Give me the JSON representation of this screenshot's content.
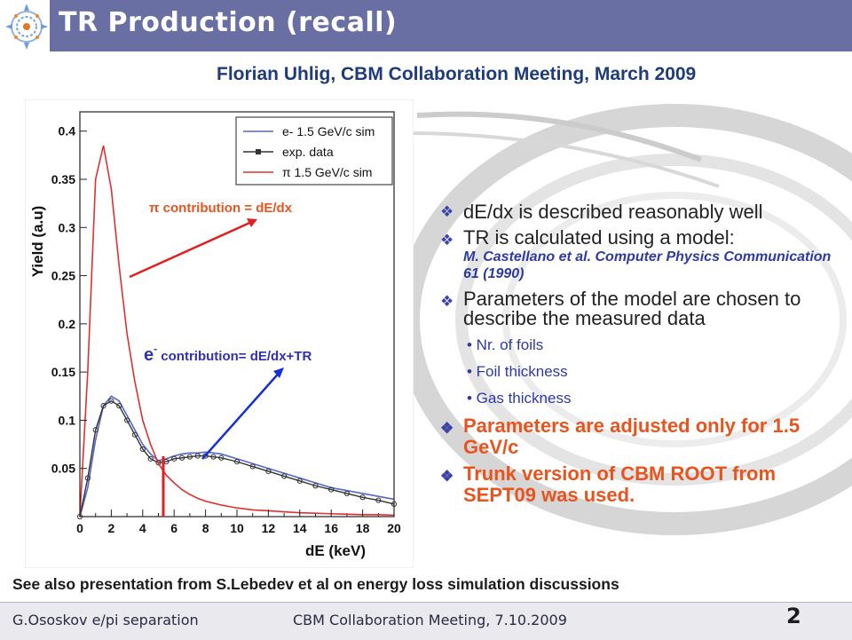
{
  "slide": {
    "title": "TR Production (recall)",
    "subtitle": "Florian Uhlig, CBM Collaboration Meeting, March 2009",
    "see_also": "See also presentation from S.Lebedev et al on energy loss simulation discussions"
  },
  "bullets": {
    "item1": "dE/dx is described reasonably well",
    "item2": "TR is calculated using a model:",
    "item2_ref": "M. Castellano et al. Computer Physics Communication 61 (1990)",
    "item3": " Parameters of the model are chosen to describe the measured data",
    "sub1": "• Nr. of foils",
    "sub2": "• Foil thickness",
    "sub3": "• Gas thickness",
    "item4": " Parameters are adjusted only for 1.5 GeV/c",
    "item5": "Trunk version of CBM ROOT from SEPT09 was used."
  },
  "annotations": {
    "pi": "π contribution = dE/dx",
    "e_sym": "e",
    "e_sup": "-",
    "e_rest": " contribution= dE/dx+TR"
  },
  "footer": {
    "author": "G.Ososkov    e/pi separation",
    "meeting": "CBM Collaboration Meeting, 7.10.2009",
    "page": "2"
  },
  "colors": {
    "title_bar": "#6a6fa3",
    "pi_annotation": "#e8541e",
    "e_annotation": "#3030b0",
    "highlight_bullet": "#e8541e",
    "electron_sim": "#5566cc",
    "pion_sim": "#e03030",
    "exp_data": "#333333"
  },
  "chart_data": {
    "type": "line",
    "xlabel": "dE (keV)",
    "ylabel": "Yield (a.u)",
    "xlim": [
      0,
      20
    ],
    "ylim": [
      0,
      0.42
    ],
    "x_ticks": [
      0,
      2,
      4,
      6,
      8,
      10,
      12,
      14,
      16,
      18,
      20
    ],
    "y_ticks": [
      0.05,
      0.1,
      0.15,
      0.2,
      0.25,
      0.3,
      0.35,
      0.4
    ],
    "legend_position": "top-right",
    "series": [
      {
        "name": "e- 1.5 GeV/c sim",
        "color": "#5566cc",
        "x": [
          0,
          0.5,
          1,
          1.5,
          2,
          2.5,
          3,
          3.5,
          4,
          4.5,
          5,
          5.5,
          6,
          6.5,
          7,
          7.5,
          8,
          8.5,
          9,
          10,
          11,
          12,
          13,
          14,
          15,
          16,
          17,
          18,
          19,
          20
        ],
        "y": [
          0,
          0.03,
          0.08,
          0.115,
          0.125,
          0.12,
          0.105,
          0.09,
          0.075,
          0.065,
          0.058,
          0.06,
          0.063,
          0.065,
          0.066,
          0.066,
          0.067,
          0.066,
          0.065,
          0.06,
          0.055,
          0.05,
          0.045,
          0.04,
          0.035,
          0.03,
          0.027,
          0.024,
          0.021,
          0.018
        ]
      },
      {
        "name": "exp. data",
        "color": "#333333",
        "x": [
          0,
          0.5,
          1,
          1.5,
          2,
          2.5,
          3,
          3.5,
          4,
          4.5,
          5,
          5.5,
          6,
          6.5,
          7,
          7.5,
          8,
          8.5,
          9,
          10,
          11,
          12,
          13,
          14,
          15,
          16,
          17,
          18,
          19,
          20
        ],
        "y": [
          0,
          0.04,
          0.09,
          0.115,
          0.12,
          0.115,
          0.1,
          0.085,
          0.07,
          0.06,
          0.056,
          0.057,
          0.06,
          0.061,
          0.062,
          0.063,
          0.063,
          0.062,
          0.061,
          0.057,
          0.052,
          0.047,
          0.042,
          0.037,
          0.032,
          0.028,
          0.024,
          0.02,
          0.017,
          0.013
        ]
      },
      {
        "name": "π 1.5 GeV/c sim",
        "color": "#e03030",
        "x": [
          0,
          0.5,
          1,
          1.5,
          2,
          2.5,
          3,
          3.5,
          4,
          4.5,
          5,
          5.5,
          6,
          6.5,
          7,
          7.5,
          8,
          8.5,
          9,
          10,
          11,
          12,
          13,
          14,
          15,
          16,
          17,
          18,
          19,
          20
        ],
        "y": [
          0,
          0.15,
          0.35,
          0.385,
          0.34,
          0.26,
          0.19,
          0.14,
          0.1,
          0.075,
          0.055,
          0.043,
          0.035,
          0.028,
          0.023,
          0.019,
          0.016,
          0.014,
          0.012,
          0.009,
          0.007,
          0.006,
          0.005,
          0.004,
          0.0035,
          0.003,
          0.0025,
          0.002,
          0.002,
          0.0015
        ]
      }
    ]
  }
}
